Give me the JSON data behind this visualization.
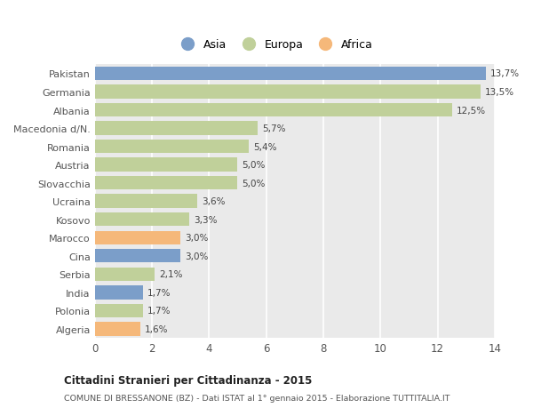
{
  "categories": [
    "Pakistan",
    "Germania",
    "Albania",
    "Macedonia d/N.",
    "Romania",
    "Austria",
    "Slovacchia",
    "Ucraina",
    "Kosovo",
    "Marocco",
    "Cina",
    "Serbia",
    "India",
    "Polonia",
    "Algeria"
  ],
  "values": [
    13.7,
    13.5,
    12.5,
    5.7,
    5.4,
    5.0,
    5.0,
    3.6,
    3.3,
    3.0,
    3.0,
    2.1,
    1.7,
    1.7,
    1.6
  ],
  "labels": [
    "13,7%",
    "13,5%",
    "12,5%",
    "5,7%",
    "5,4%",
    "5,0%",
    "5,0%",
    "3,6%",
    "3,3%",
    "3,0%",
    "3,0%",
    "2,1%",
    "1,7%",
    "1,7%",
    "1,6%"
  ],
  "continent": [
    "Asia",
    "Europa",
    "Europa",
    "Europa",
    "Europa",
    "Europa",
    "Europa",
    "Europa",
    "Europa",
    "Africa",
    "Asia",
    "Europa",
    "Asia",
    "Europa",
    "Africa"
  ],
  "colors": {
    "Asia": "#7b9ec9",
    "Europa": "#c0d09a",
    "Africa": "#f5b87a"
  },
  "title": "Cittadini Stranieri per Cittadinanza - 2015",
  "subtitle": "COMUNE DI BRESSANONE (BZ) - Dati ISTAT al 1° gennaio 2015 - Elaborazione TUTTITALIA.IT",
  "xlim": [
    0,
    14
  ],
  "xticks": [
    0,
    2,
    4,
    6,
    8,
    10,
    12,
    14
  ],
  "background_color": "#ffffff",
  "plot_bg_color": "#eaeaea",
  "grid_color": "#ffffff",
  "bar_height": 0.75
}
